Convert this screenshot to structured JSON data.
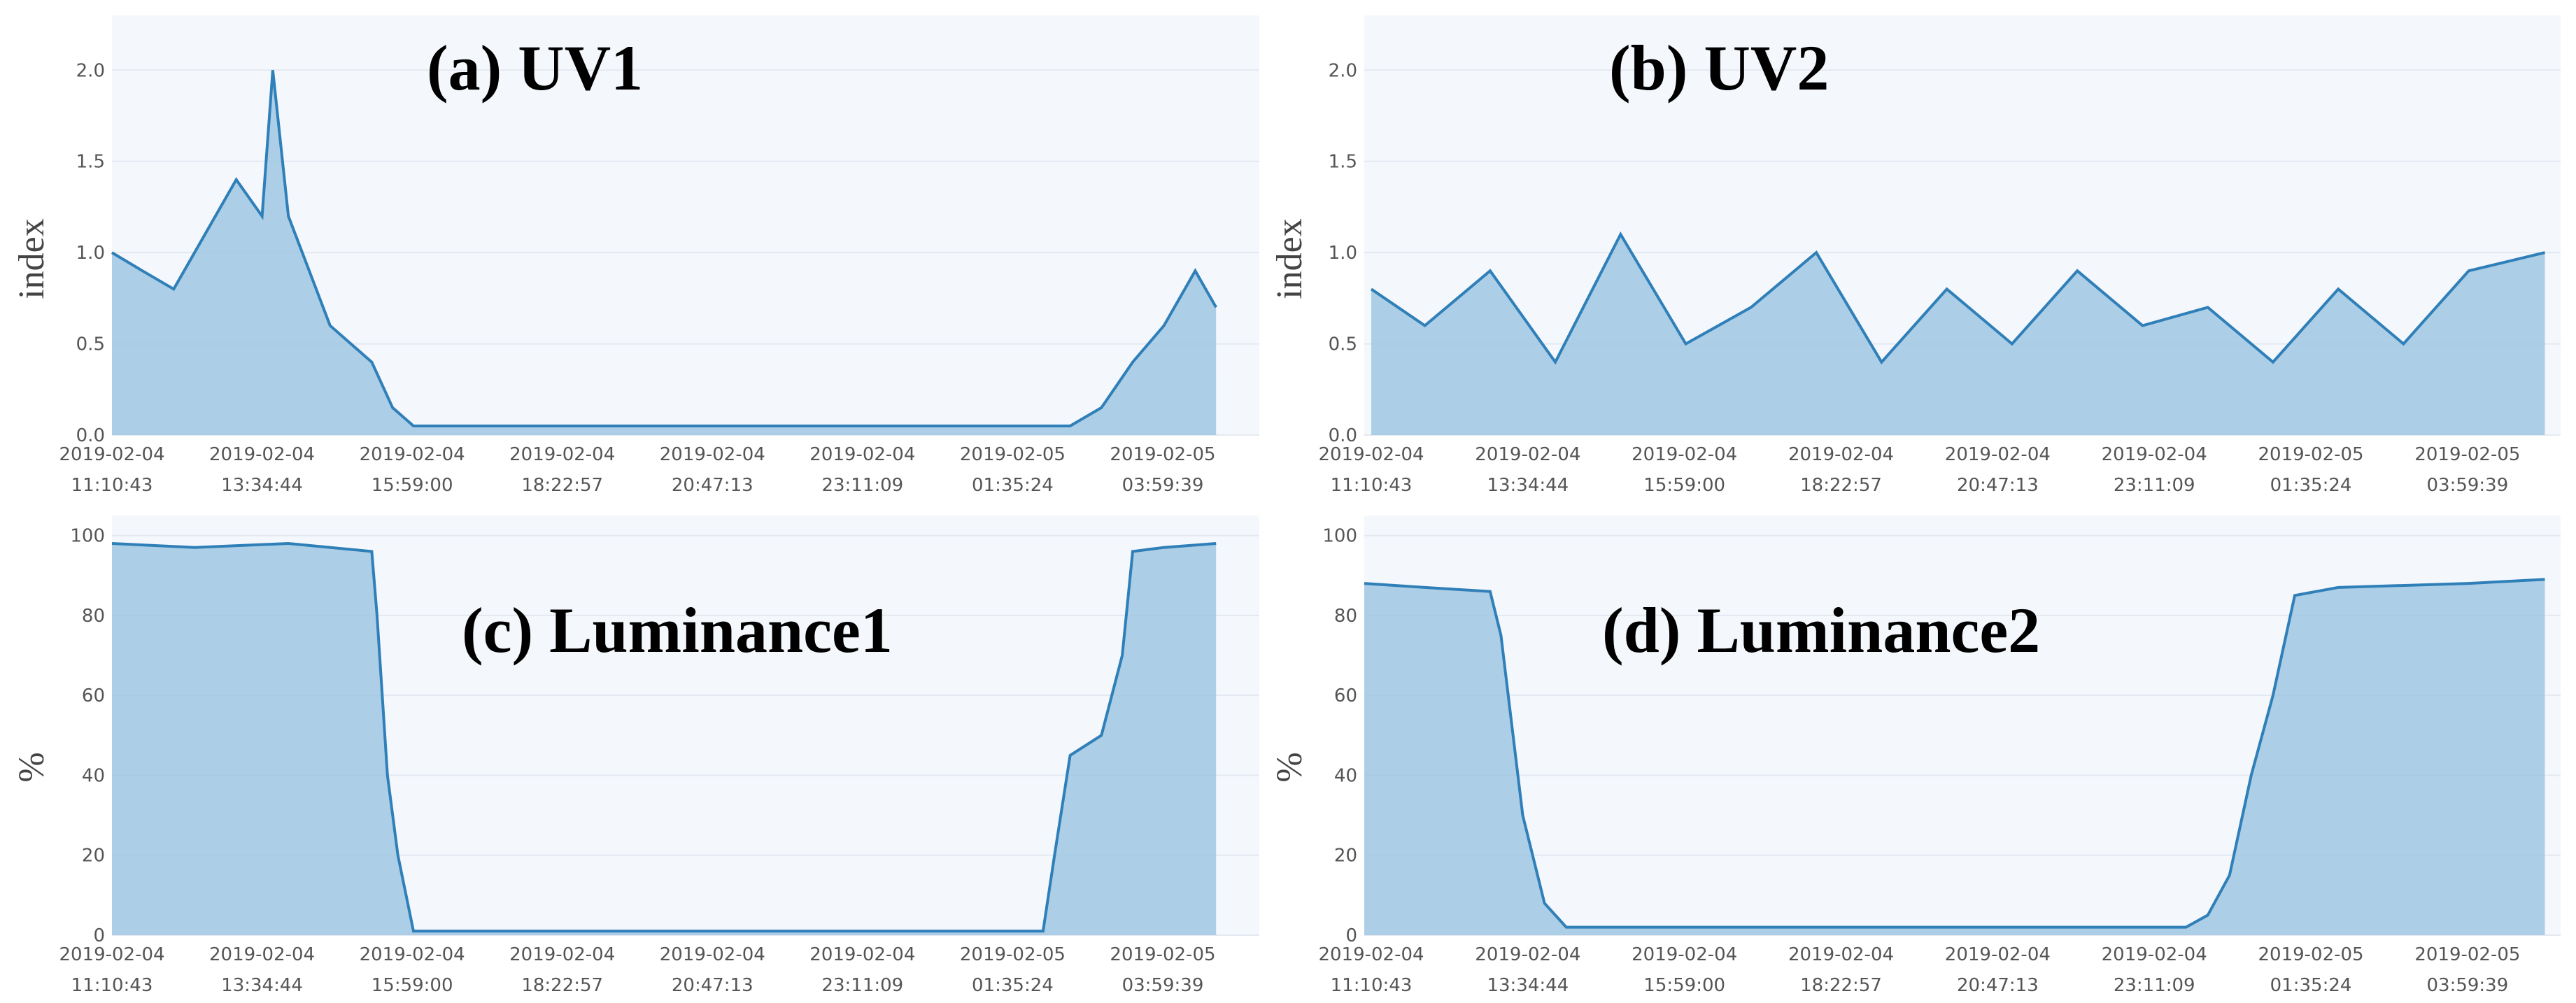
{
  "colors": {
    "line": "#2f7fb8",
    "fill": "#9fc7e2",
    "plot_bg": "#f4f7fc",
    "grid": "#e4e9f1"
  },
  "chart_data": [
    {
      "type": "area",
      "title": "(a) UV1",
      "xlabel": "",
      "ylabel": "index",
      "ylim": [
        0,
        2.3
      ],
      "yticks": [
        "0.0",
        "0.5",
        "1.0",
        "1.5",
        "2.0"
      ],
      "ytick_values": [
        0,
        0.5,
        1.0,
        1.5,
        2.0
      ],
      "xtick_dates": [
        "2019-02-04",
        "2019-02-04",
        "2019-02-04",
        "2019-02-04",
        "2019-02-04",
        "2019-02-04",
        "2019-02-05",
        "2019-02-05"
      ],
      "xtick_times": [
        "11:10:43",
        "13:34:44",
        "15:59:00",
        "18:22:57",
        "20:47:13",
        "23:11:09",
        "01:35:24",
        "03:59:39"
      ],
      "grid": true,
      "series": [
        {
          "x": [
            "2019-02-04 11:10:43",
            "2019-02-04 11:40:00",
            "2019-02-04 12:10:00",
            "2019-02-04 12:40:00",
            "2019-02-04 13:10:00",
            "2019-02-04 13:34:44",
            "2019-02-04 13:45:00",
            "2019-02-04 14:00:00",
            "2019-02-04 14:20:00",
            "2019-02-04 14:40:00",
            "2019-02-04 15:00:00",
            "2019-02-04 15:20:00",
            "2019-02-04 15:40:00",
            "2019-02-04 16:00:00",
            "2019-02-04 18:00:00",
            "2019-02-04 20:00:00",
            "2019-02-04 22:00:00",
            "2019-02-05 00:00:00",
            "2019-02-05 01:35:24",
            "2019-02-05 02:30:00",
            "2019-02-05 03:00:00",
            "2019-02-05 03:30:00",
            "2019-02-05 04:00:00",
            "2019-02-05 04:30:00",
            "2019-02-05 04:50:00"
          ],
          "values": [
            1.0,
            0.9,
            0.8,
            1.1,
            1.4,
            1.2,
            2.0,
            1.2,
            0.9,
            0.6,
            0.5,
            0.4,
            0.15,
            0.05,
            0.05,
            0.05,
            0.05,
            0.05,
            0.05,
            0.05,
            0.15,
            0.4,
            0.6,
            0.9,
            0.7
          ]
        }
      ]
    },
    {
      "type": "area",
      "title": "(b) UV2",
      "xlabel": "",
      "ylabel": "index",
      "ylim": [
        0,
        2.3
      ],
      "yticks": [
        "0.0",
        "0.5",
        "1.0",
        "1.5",
        "2.0"
      ],
      "ytick_values": [
        0,
        0.5,
        1.0,
        1.5,
        2.0
      ],
      "xtick_dates": [
        "2019-02-04",
        "2019-02-04",
        "2019-02-04",
        "2019-02-04",
        "2019-02-04",
        "2019-02-04",
        "2019-02-05",
        "2019-02-05"
      ],
      "xtick_times": [
        "11:10:43",
        "13:34:44",
        "15:59:00",
        "18:22:57",
        "20:47:13",
        "23:11:09",
        "01:35:24",
        "03:59:39"
      ],
      "grid": true,
      "series": [
        {
          "x": [
            "2019-02-04 11:10:43",
            "2019-02-04 12:00:00",
            "2019-02-04 13:00:00",
            "2019-02-04 14:00:00",
            "2019-02-04 15:00:00",
            "2019-02-04 16:00:00",
            "2019-02-04 17:00:00",
            "2019-02-04 18:00:00",
            "2019-02-04 19:00:00",
            "2019-02-04 20:00:00",
            "2019-02-04 21:00:00",
            "2019-02-04 22:00:00",
            "2019-02-04 23:00:00",
            "2019-02-05 00:00:00",
            "2019-02-05 01:00:00",
            "2019-02-05 02:00:00",
            "2019-02-05 03:00:00",
            "2019-02-05 04:00:00",
            "2019-02-05 05:10:00"
          ],
          "values": [
            0.8,
            0.6,
            0.9,
            0.4,
            1.1,
            0.5,
            0.7,
            1.0,
            0.4,
            0.8,
            0.5,
            0.9,
            0.6,
            0.7,
            0.4,
            0.8,
            0.5,
            0.9,
            1.0
          ]
        }
      ]
    },
    {
      "type": "area",
      "title": "(c) Luminance1",
      "xlabel": "",
      "ylabel": "%",
      "ylim": [
        0,
        105
      ],
      "yticks": [
        "0",
        "20",
        "40",
        "60",
        "80",
        "100"
      ],
      "ytick_values": [
        0,
        20,
        40,
        60,
        80,
        100
      ],
      "xtick_dates": [
        "2019-02-04",
        "2019-02-04",
        "2019-02-04",
        "2019-02-04",
        "2019-02-04",
        "2019-02-04",
        "2019-02-05",
        "2019-02-05"
      ],
      "xtick_times": [
        "11:10:43",
        "13:34:44",
        "15:59:00",
        "18:22:57",
        "20:47:13",
        "23:11:09",
        "01:35:24",
        "03:59:39"
      ],
      "grid": true,
      "series": [
        {
          "x": [
            "2019-02-04 11:10:43",
            "2019-02-04 12:30:00",
            "2019-02-04 14:00:00",
            "2019-02-04 15:20:00",
            "2019-02-04 15:25:00",
            "2019-02-04 15:35:00",
            "2019-02-04 15:45:00",
            "2019-02-04 16:00:00",
            "2019-02-04 18:00:00",
            "2019-02-04 22:00:00",
            "2019-02-05 02:04:00",
            "2019-02-05 02:15:00",
            "2019-02-05 02:30:00",
            "2019-02-05 03:00:00",
            "2019-02-05 03:20:00",
            "2019-02-05 03:30:00",
            "2019-02-05 04:00:00",
            "2019-02-05 04:50:00"
          ],
          "values": [
            98,
            97,
            98,
            96,
            80,
            40,
            20,
            1,
            1,
            1,
            1,
            20,
            45,
            50,
            70,
            96,
            97,
            98
          ]
        }
      ]
    },
    {
      "type": "area",
      "title": "(d) Luminance2",
      "xlabel": "",
      "ylabel": "%",
      "ylim": [
        0,
        105
      ],
      "yticks": [
        "0",
        "20",
        "40",
        "60",
        "80",
        "100"
      ],
      "ytick_values": [
        0,
        20,
        40,
        60,
        80,
        100
      ],
      "xtick_dates": [
        "2019-02-04",
        "2019-02-04",
        "2019-02-04",
        "2019-02-04",
        "2019-02-04",
        "2019-02-04",
        "2019-02-05",
        "2019-02-05"
      ],
      "xtick_times": [
        "11:10:43",
        "13:34:44",
        "15:59:00",
        "18:22:57",
        "20:47:13",
        "23:11:09",
        "01:35:24",
        "03:59:39"
      ],
      "grid": true,
      "series": [
        {
          "x": [
            "2019-02-04 11:00:00",
            "2019-02-04 12:00:00",
            "2019-02-04 13:00:00",
            "2019-02-04 13:10:00",
            "2019-02-04 13:30:00",
            "2019-02-04 13:50:00",
            "2019-02-04 14:10:00",
            "2019-02-04 16:00:00",
            "2019-02-04 20:00:00",
            "2019-02-04 23:40:00",
            "2019-02-05 00:00:00",
            "2019-02-05 00:20:00",
            "2019-02-05 00:40:00",
            "2019-02-05 01:00:00",
            "2019-02-05 01:20:00",
            "2019-02-05 02:00:00",
            "2019-02-05 04:00:00",
            "2019-02-05 05:10:00"
          ],
          "values": [
            88,
            87,
            86,
            75,
            30,
            8,
            2,
            2,
            2,
            2,
            5,
            15,
            40,
            60,
            85,
            87,
            88,
            89
          ]
        }
      ]
    }
  ]
}
